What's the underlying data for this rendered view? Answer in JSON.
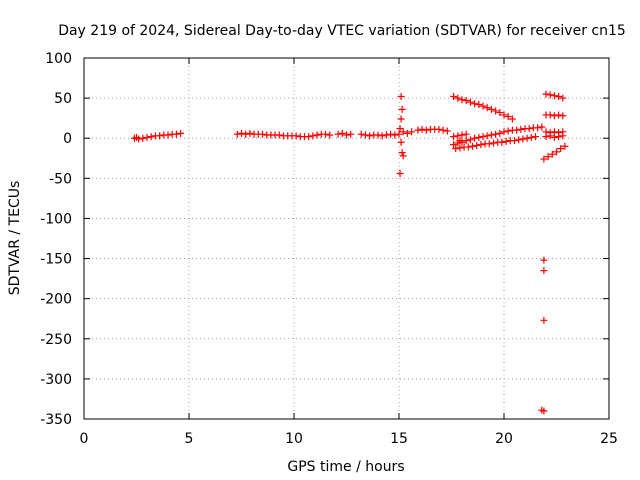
{
  "chart_data": {
    "type": "scatter",
    "title": "Day 219 of 2024, Sidereal Day-to-day VTEC variation (SDTVAR) for receiver cn15",
    "xlabel": "GPS time / hours",
    "ylabel": "SDTVAR / TECUs",
    "xlim": [
      0,
      25
    ],
    "ylim": [
      -350,
      100
    ],
    "x_ticks": [
      0,
      5,
      10,
      15,
      20,
      25
    ],
    "y_ticks": [
      100,
      50,
      0,
      -50,
      -100,
      -150,
      -200,
      -250,
      -300,
      -350
    ],
    "grid": true,
    "marker": "plus",
    "color": "#ff0000",
    "series": [
      {
        "name": "SDTVAR",
        "points": [
          [
            2.4,
            0
          ],
          [
            2.5,
            1
          ],
          [
            2.6,
            -1
          ],
          [
            2.8,
            0
          ],
          [
            3.0,
            1
          ],
          [
            3.2,
            2
          ],
          [
            3.4,
            3
          ],
          [
            3.6,
            3
          ],
          [
            3.8,
            4
          ],
          [
            4.0,
            4
          ],
          [
            4.2,
            5
          ],
          [
            4.4,
            5
          ],
          [
            4.6,
            6
          ],
          [
            7.3,
            5
          ],
          [
            7.5,
            6
          ],
          [
            7.7,
            5
          ],
          [
            7.9,
            6
          ],
          [
            8.1,
            5
          ],
          [
            8.3,
            5
          ],
          [
            8.5,
            5
          ],
          [
            8.7,
            4
          ],
          [
            8.9,
            4
          ],
          [
            9.1,
            4
          ],
          [
            9.3,
            4
          ],
          [
            9.5,
            3
          ],
          [
            9.7,
            3
          ],
          [
            9.9,
            3
          ],
          [
            10.1,
            3
          ],
          [
            10.3,
            2
          ],
          [
            10.5,
            2
          ],
          [
            10.7,
            2
          ],
          [
            10.9,
            3
          ],
          [
            11.1,
            4
          ],
          [
            11.3,
            5
          ],
          [
            11.5,
            5
          ],
          [
            11.7,
            4
          ],
          [
            12.1,
            5
          ],
          [
            12.3,
            6
          ],
          [
            12.5,
            4
          ],
          [
            12.7,
            5
          ],
          [
            13.2,
            5
          ],
          [
            13.4,
            4
          ],
          [
            13.6,
            3
          ],
          [
            13.8,
            4
          ],
          [
            14.0,
            4
          ],
          [
            14.2,
            3
          ],
          [
            14.4,
            4
          ],
          [
            14.6,
            5
          ],
          [
            14.8,
            4
          ],
          [
            15.0,
            5
          ],
          [
            15.1,
            52
          ],
          [
            15.15,
            36
          ],
          [
            15.1,
            24
          ],
          [
            15.05,
            12
          ],
          [
            15.1,
            -5
          ],
          [
            15.15,
            -18
          ],
          [
            15.2,
            -22
          ],
          [
            15.05,
            -44
          ],
          [
            15.2,
            8
          ],
          [
            15.4,
            6
          ],
          [
            15.6,
            8
          ],
          [
            15.9,
            10
          ],
          [
            16.1,
            11
          ],
          [
            16.3,
            10
          ],
          [
            16.5,
            11
          ],
          [
            16.7,
            11
          ],
          [
            16.9,
            11
          ],
          [
            17.1,
            10
          ],
          [
            17.3,
            9
          ],
          [
            17.6,
            52
          ],
          [
            17.8,
            50
          ],
          [
            18.0,
            48
          ],
          [
            18.2,
            47
          ],
          [
            18.4,
            45
          ],
          [
            18.6,
            43
          ],
          [
            18.8,
            42
          ],
          [
            19.0,
            40
          ],
          [
            19.2,
            38
          ],
          [
            19.4,
            36
          ],
          [
            19.6,
            34
          ],
          [
            19.8,
            32
          ],
          [
            20.0,
            29
          ],
          [
            20.2,
            27
          ],
          [
            20.4,
            24
          ],
          [
            17.6,
            2
          ],
          [
            17.8,
            3
          ],
          [
            18.0,
            4
          ],
          [
            18.2,
            5
          ],
          [
            17.9,
            -3
          ],
          [
            17.6,
            -8
          ],
          [
            17.8,
            -6
          ],
          [
            18.0,
            -5
          ],
          [
            18.2,
            -3
          ],
          [
            18.4,
            -2
          ],
          [
            18.6,
            0
          ],
          [
            18.8,
            1
          ],
          [
            19.0,
            2
          ],
          [
            19.2,
            3
          ],
          [
            19.4,
            4
          ],
          [
            19.6,
            5
          ],
          [
            19.8,
            6
          ],
          [
            20.0,
            8
          ],
          [
            20.2,
            9
          ],
          [
            20.4,
            10
          ],
          [
            20.6,
            10
          ],
          [
            20.8,
            11
          ],
          [
            21.0,
            12
          ],
          [
            21.2,
            12
          ],
          [
            21.4,
            13
          ],
          [
            21.6,
            13
          ],
          [
            21.8,
            14
          ],
          [
            17.7,
            -13
          ],
          [
            17.9,
            -12
          ],
          [
            18.1,
            -11
          ],
          [
            18.3,
            -11
          ],
          [
            18.5,
            -10
          ],
          [
            18.7,
            -9
          ],
          [
            18.9,
            -8
          ],
          [
            19.1,
            -7
          ],
          [
            19.3,
            -7
          ],
          [
            19.5,
            -6
          ],
          [
            19.7,
            -5
          ],
          [
            19.9,
            -5
          ],
          [
            20.1,
            -4
          ],
          [
            20.3,
            -3
          ],
          [
            20.5,
            -3
          ],
          [
            20.7,
            -2
          ],
          [
            20.9,
            -1
          ],
          [
            21.1,
            0
          ],
          [
            21.3,
            1
          ],
          [
            21.5,
            2
          ],
          [
            21.9,
            -26
          ],
          [
            22.1,
            -23
          ],
          [
            22.3,
            -20
          ],
          [
            22.5,
            -17
          ],
          [
            22.7,
            -13
          ],
          [
            22.9,
            -10
          ],
          [
            21.9,
            -152
          ],
          [
            21.9,
            -165
          ],
          [
            21.9,
            -227
          ],
          [
            21.9,
            -340
          ],
          [
            21.8,
            -339
          ],
          [
            22.0,
            55
          ],
          [
            22.2,
            54
          ],
          [
            22.4,
            53
          ],
          [
            22.6,
            52
          ],
          [
            22.8,
            50
          ],
          [
            22.0,
            29
          ],
          [
            22.2,
            29
          ],
          [
            22.4,
            28
          ],
          [
            22.6,
            29
          ],
          [
            22.8,
            28
          ],
          [
            22.0,
            8
          ],
          [
            22.2,
            7
          ],
          [
            22.4,
            8
          ],
          [
            22.6,
            7
          ],
          [
            22.8,
            8
          ],
          [
            22.0,
            2
          ],
          [
            22.2,
            3
          ],
          [
            22.4,
            1
          ],
          [
            22.6,
            2
          ],
          [
            22.8,
            3
          ]
        ]
      }
    ]
  }
}
